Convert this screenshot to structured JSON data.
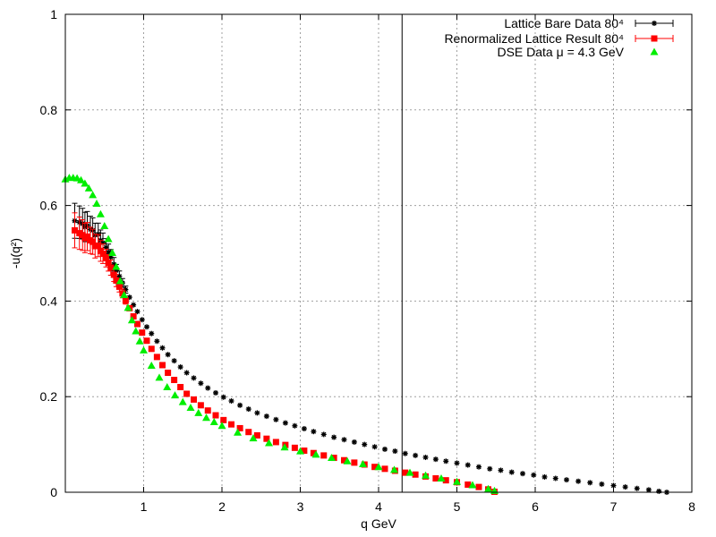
{
  "chart_data": {
    "type": "scatter",
    "title": "",
    "xlabel": "q GeV",
    "ylabel": "-u(q²)",
    "xlim": [
      0,
      8
    ],
    "ylim": [
      0,
      1
    ],
    "xticks": [
      "1",
      "2",
      "3",
      "4",
      "5",
      "6",
      "7",
      "8"
    ],
    "yticks": [
      "0",
      "0.2",
      "0.4",
      "0.6",
      "0.8",
      "1"
    ],
    "grid": true,
    "legend_position": "top-right",
    "vertical_line_x": 4.3,
    "series": [
      {
        "name": "Lattice Bare Data 80⁴",
        "color": "#000000",
        "marker": "star-with-errorbars",
        "points": [
          [
            0.12,
            0.568
          ],
          [
            0.18,
            0.565
          ],
          [
            0.22,
            0.562
          ],
          [
            0.25,
            0.555
          ],
          [
            0.28,
            0.558
          ],
          [
            0.32,
            0.55
          ],
          [
            0.35,
            0.548
          ],
          [
            0.38,
            0.538
          ],
          [
            0.42,
            0.54
          ],
          [
            0.45,
            0.527
          ],
          [
            0.48,
            0.522
          ],
          [
            0.52,
            0.512
          ],
          [
            0.55,
            0.502
          ],
          [
            0.58,
            0.492
          ],
          [
            0.62,
            0.477
          ],
          [
            0.65,
            0.464
          ],
          [
            0.69,
            0.452
          ],
          [
            0.73,
            0.438
          ],
          [
            0.77,
            0.424
          ],
          [
            0.82,
            0.408
          ],
          [
            0.87,
            0.392
          ],
          [
            0.92,
            0.378
          ],
          [
            0.98,
            0.361
          ],
          [
            1.04,
            0.346
          ],
          [
            1.1,
            0.332
          ],
          [
            1.17,
            0.316
          ],
          [
            1.24,
            0.302
          ],
          [
            1.31,
            0.288
          ],
          [
            1.39,
            0.275
          ],
          [
            1.47,
            0.262
          ],
          [
            1.55,
            0.25
          ],
          [
            1.64,
            0.239
          ],
          [
            1.73,
            0.228
          ],
          [
            1.82,
            0.218
          ],
          [
            1.92,
            0.208
          ],
          [
            2.02,
            0.199
          ],
          [
            2.12,
            0.191
          ],
          [
            2.23,
            0.182
          ],
          [
            2.34,
            0.174
          ],
          [
            2.45,
            0.166
          ],
          [
            2.57,
            0.159
          ],
          [
            2.69,
            0.152
          ],
          [
            2.81,
            0.145
          ],
          [
            2.93,
            0.139
          ],
          [
            3.05,
            0.133
          ],
          [
            3.17,
            0.127
          ],
          [
            3.3,
            0.121
          ],
          [
            3.43,
            0.115
          ],
          [
            3.56,
            0.11
          ],
          [
            3.69,
            0.105
          ],
          [
            3.82,
            0.1
          ],
          [
            3.95,
            0.095
          ],
          [
            4.08,
            0.09
          ],
          [
            4.21,
            0.086
          ],
          [
            4.34,
            0.081
          ],
          [
            4.47,
            0.077
          ],
          [
            4.6,
            0.073
          ],
          [
            4.73,
            0.069
          ],
          [
            4.86,
            0.065
          ],
          [
            5.0,
            0.061
          ],
          [
            5.14,
            0.057
          ],
          [
            5.28,
            0.053
          ],
          [
            5.42,
            0.049
          ],
          [
            5.56,
            0.046
          ],
          [
            5.7,
            0.042
          ],
          [
            5.84,
            0.039
          ],
          [
            5.98,
            0.036
          ],
          [
            6.12,
            0.032
          ],
          [
            6.26,
            0.029
          ],
          [
            6.4,
            0.026
          ],
          [
            6.55,
            0.023
          ],
          [
            6.7,
            0.02
          ],
          [
            6.85,
            0.017
          ],
          [
            7.0,
            0.014
          ],
          [
            7.15,
            0.011
          ],
          [
            7.3,
            0.008
          ],
          [
            7.45,
            0.005
          ],
          [
            7.58,
            0.002
          ],
          [
            7.68,
            0.0
          ]
        ]
      },
      {
        "name": "Renormalized Lattice Result 80⁴",
        "color": "#ff0000",
        "marker": "square-with-errorbars",
        "points": [
          [
            0.12,
            0.548
          ],
          [
            0.18,
            0.542
          ],
          [
            0.22,
            0.538
          ],
          [
            0.25,
            0.532
          ],
          [
            0.28,
            0.535
          ],
          [
            0.32,
            0.527
          ],
          [
            0.35,
            0.524
          ],
          [
            0.38,
            0.515
          ],
          [
            0.42,
            0.516
          ],
          [
            0.45,
            0.505
          ],
          [
            0.48,
            0.499
          ],
          [
            0.52,
            0.49
          ],
          [
            0.55,
            0.48
          ],
          [
            0.58,
            0.47
          ],
          [
            0.62,
            0.455
          ],
          [
            0.65,
            0.443
          ],
          [
            0.69,
            0.43
          ],
          [
            0.73,
            0.416
          ],
          [
            0.77,
            0.401
          ],
          [
            0.82,
            0.385
          ],
          [
            0.87,
            0.368
          ],
          [
            0.92,
            0.352
          ],
          [
            0.98,
            0.334
          ],
          [
            1.04,
            0.317
          ],
          [
            1.1,
            0.3
          ],
          [
            1.17,
            0.283
          ],
          [
            1.24,
            0.266
          ],
          [
            1.31,
            0.25
          ],
          [
            1.39,
            0.235
          ],
          [
            1.47,
            0.22
          ],
          [
            1.55,
            0.206
          ],
          [
            1.64,
            0.194
          ],
          [
            1.73,
            0.182
          ],
          [
            1.82,
            0.171
          ],
          [
            1.92,
            0.161
          ],
          [
            2.02,
            0.151
          ],
          [
            2.12,
            0.142
          ],
          [
            2.23,
            0.134
          ],
          [
            2.34,
            0.126
          ],
          [
            2.45,
            0.119
          ],
          [
            2.57,
            0.112
          ],
          [
            2.69,
            0.105
          ],
          [
            2.81,
            0.099
          ],
          [
            2.93,
            0.093
          ],
          [
            3.05,
            0.087
          ],
          [
            3.17,
            0.082
          ],
          [
            3.3,
            0.077
          ],
          [
            3.43,
            0.072
          ],
          [
            3.56,
            0.067
          ],
          [
            3.69,
            0.062
          ],
          [
            3.82,
            0.058
          ],
          [
            3.95,
            0.053
          ],
          [
            4.08,
            0.049
          ],
          [
            4.21,
            0.045
          ],
          [
            4.34,
            0.041
          ],
          [
            4.47,
            0.037
          ],
          [
            4.6,
            0.033
          ],
          [
            4.73,
            0.029
          ],
          [
            4.86,
            0.025
          ],
          [
            5.0,
            0.021
          ],
          [
            5.14,
            0.016
          ],
          [
            5.28,
            0.011
          ],
          [
            5.4,
            0.006
          ],
          [
            5.48,
            0.001
          ]
        ]
      },
      {
        "name": "DSE Data μ = 4.3 GeV",
        "color": "#00ee00",
        "marker": "triangle",
        "points": [
          [
            0.0,
            0.655
          ],
          [
            0.05,
            0.658
          ],
          [
            0.1,
            0.658
          ],
          [
            0.15,
            0.657
          ],
          [
            0.2,
            0.653
          ],
          [
            0.25,
            0.646
          ],
          [
            0.3,
            0.636
          ],
          [
            0.35,
            0.622
          ],
          [
            0.4,
            0.604
          ],
          [
            0.45,
            0.582
          ],
          [
            0.5,
            0.557
          ],
          [
            0.55,
            0.53
          ],
          [
            0.6,
            0.501
          ],
          [
            0.65,
            0.472
          ],
          [
            0.7,
            0.442
          ],
          [
            0.75,
            0.413
          ],
          [
            0.8,
            0.386
          ],
          [
            0.85,
            0.36
          ],
          [
            0.9,
            0.337
          ],
          [
            0.95,
            0.316
          ],
          [
            1.0,
            0.297
          ],
          [
            1.1,
            0.265
          ],
          [
            1.2,
            0.24
          ],
          [
            1.3,
            0.22
          ],
          [
            1.4,
            0.203
          ],
          [
            1.5,
            0.189
          ],
          [
            1.6,
            0.177
          ],
          [
            1.7,
            0.166
          ],
          [
            1.8,
            0.156
          ],
          [
            1.9,
            0.147
          ],
          [
            2.0,
            0.139
          ],
          [
            2.2,
            0.125
          ],
          [
            2.4,
            0.113
          ],
          [
            2.6,
            0.103
          ],
          [
            2.8,
            0.094
          ],
          [
            3.0,
            0.086
          ],
          [
            3.2,
            0.079
          ],
          [
            3.4,
            0.072
          ],
          [
            3.6,
            0.065
          ],
          [
            3.8,
            0.059
          ],
          [
            4.0,
            0.053
          ],
          [
            4.2,
            0.047
          ],
          [
            4.4,
            0.041
          ],
          [
            4.6,
            0.035
          ],
          [
            4.8,
            0.029
          ],
          [
            5.0,
            0.022
          ],
          [
            5.2,
            0.015
          ],
          [
            5.4,
            0.007
          ],
          [
            5.48,
            0.003
          ]
        ]
      }
    ]
  }
}
